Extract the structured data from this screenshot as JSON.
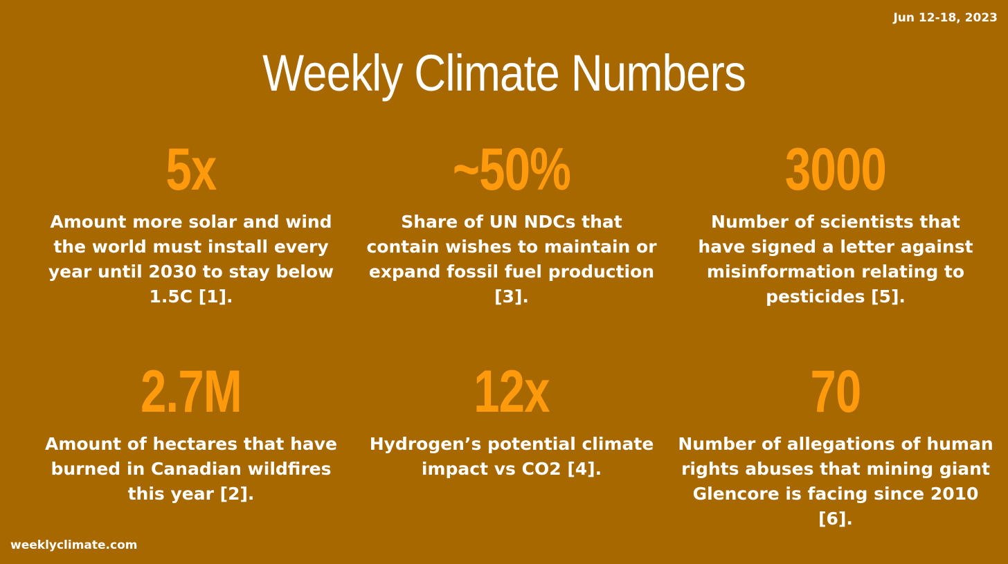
{
  "header": {
    "date_range": "Jun 12-18, 2023",
    "title": "Weekly Climate Numbers"
  },
  "stats": [
    {
      "value": "5x",
      "description": "Amount more solar and wind the world must install every year until 2030 to stay below 1.5C [1]."
    },
    {
      "value": "~50%",
      "description": "Share of UN NDCs that contain wishes to maintain or expand fossil fuel production [3]."
    },
    {
      "value": "3000",
      "description": "Number of scientists that have signed a letter against misinformation relating to pesticides [5]."
    },
    {
      "value": "2.7M",
      "description": "Amount of hectares that have burned in Canadian wildfires this year [2]."
    },
    {
      "value": "12x",
      "description": "Hydrogen’s potential climate impact vs CO2 [4]."
    },
    {
      "value": "70",
      "description": "Number of allegations of human rights abuses that mining giant Glencore is facing since 2010 [6]."
    }
  ],
  "footer": {
    "site": "weeklyclimate.com"
  },
  "colors": {
    "background": "#A86800",
    "accent": "#FF9A0D",
    "text": "#FFFFFF"
  }
}
